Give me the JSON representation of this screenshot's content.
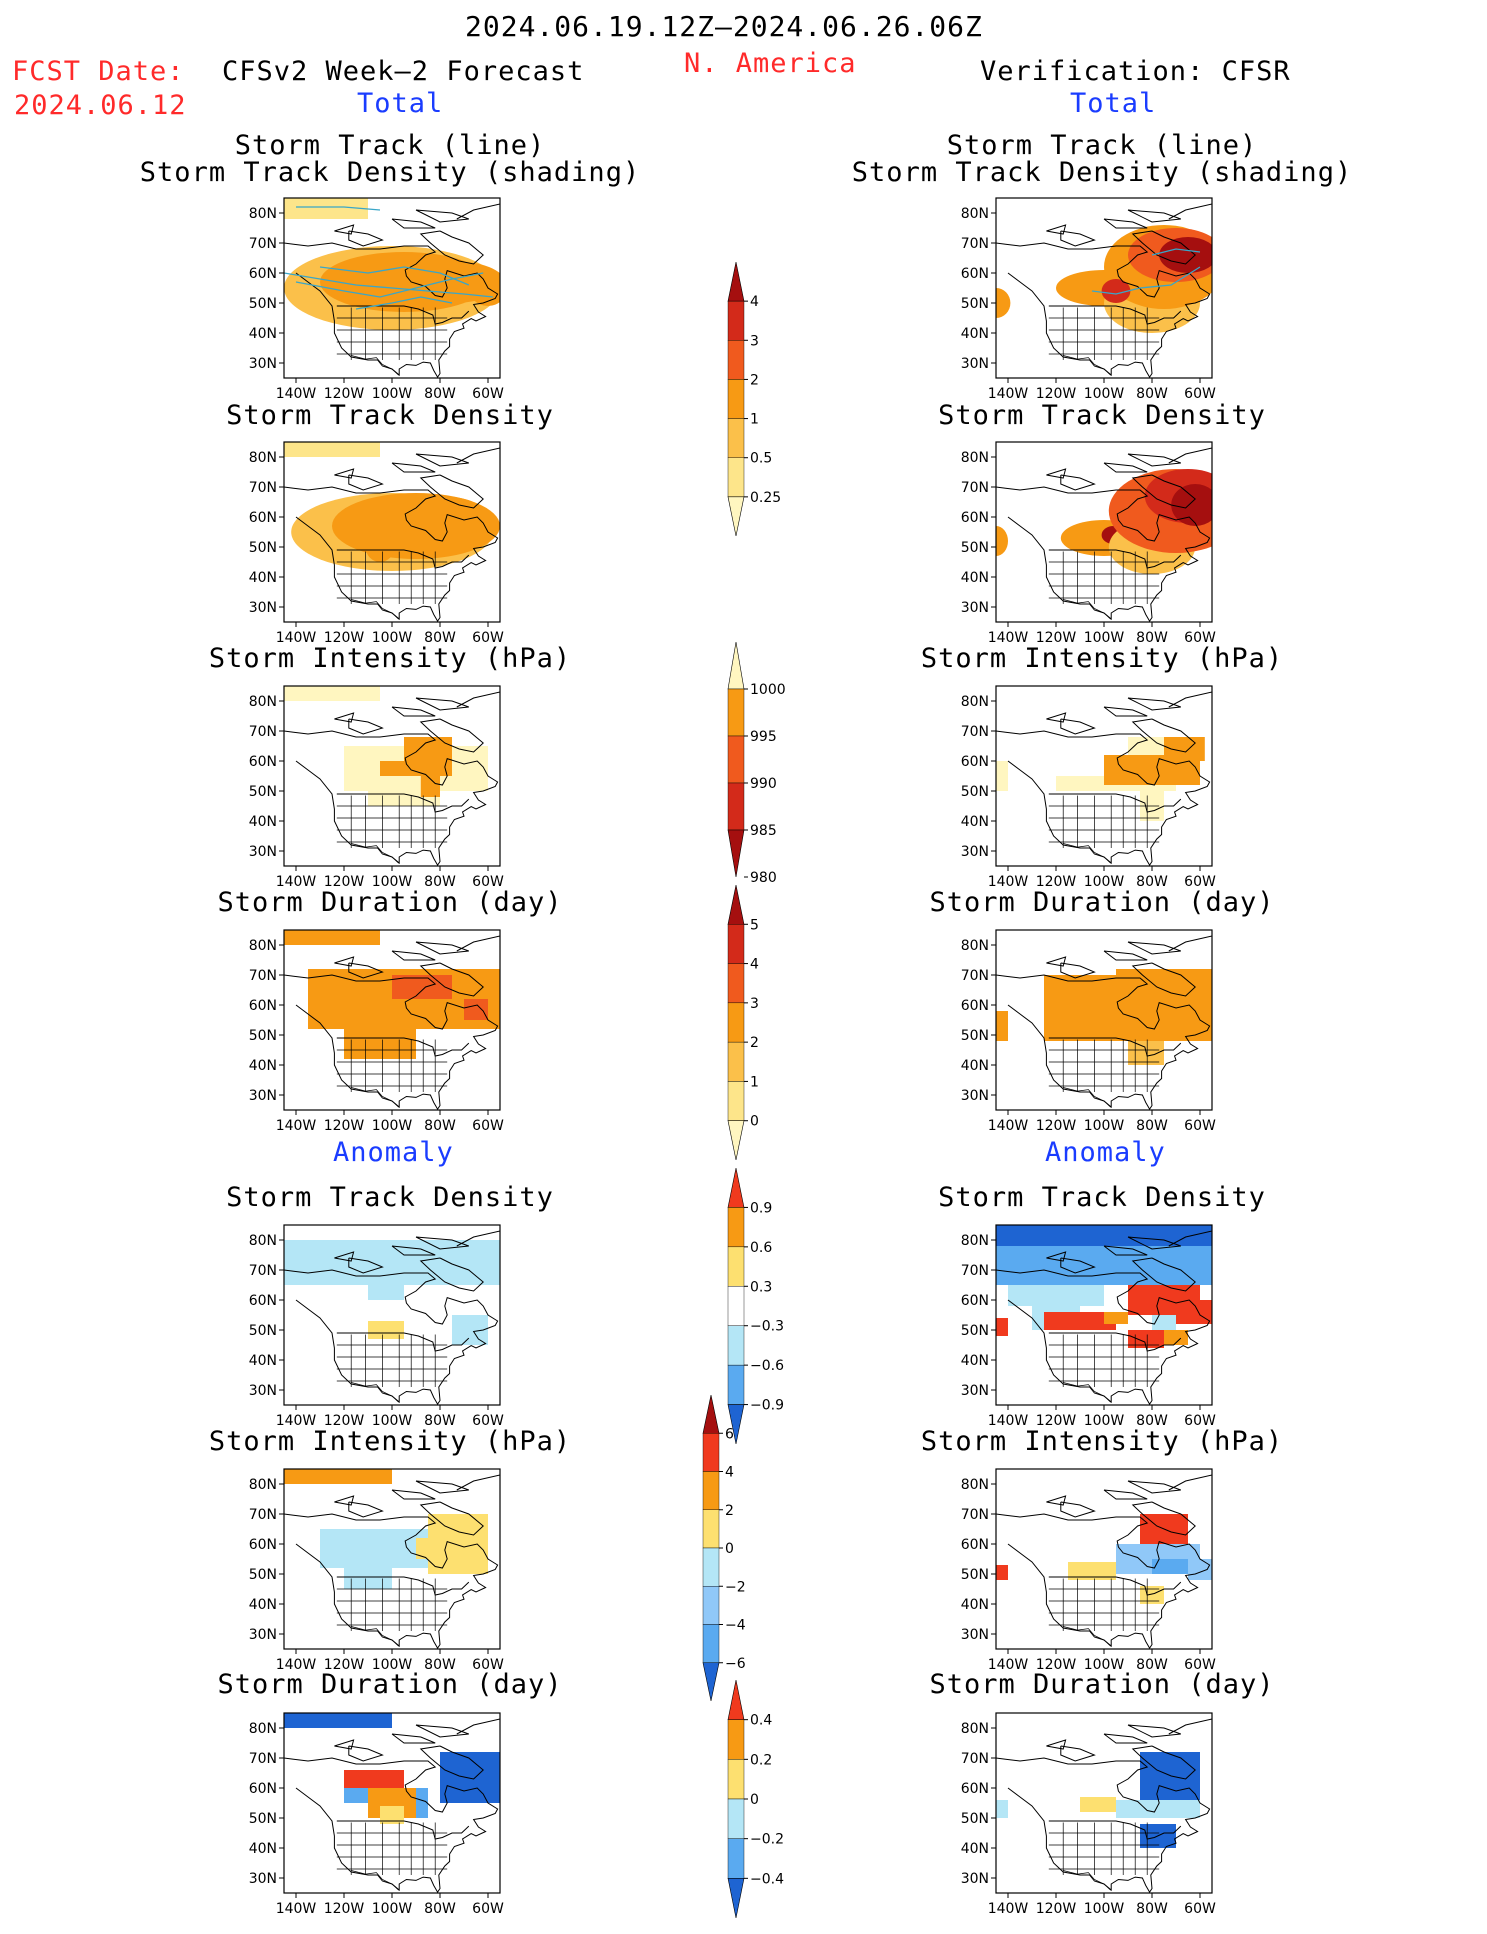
{
  "header": {
    "period": "2024.06.19.12Z–2024.06.26.06Z",
    "fcst_label": "FCST Date:",
    "fcst_date": "2024.06.12",
    "forecast_title": "CFSv2 Week–2 Forecast",
    "region": "N. America",
    "verification_title": "Verification: CFSR"
  },
  "sections": {
    "total": "Total",
    "anomaly": "Anomaly"
  },
  "panel_titles": {
    "track_line": "Storm Track (line)",
    "track_density_shading": "Storm Track Density (shading)",
    "track_density": "Storm Track Density",
    "intensity": "Storm Intensity (hPa)",
    "duration": "Storm Duration (day)"
  },
  "axes": {
    "lon_labels": [
      "140W",
      "120W",
      "100W",
      "80W",
      "60W"
    ],
    "lat_labels": [
      "80N",
      "70N",
      "60N",
      "50N",
      "40N",
      "30N"
    ]
  },
  "colorbars": {
    "total_density": {
      "labels": [
        "4",
        "3",
        "2",
        "1",
        "0.5",
        "0.25"
      ],
      "colors": [
        "#a50f0f",
        "#d32a1a",
        "#f05a1e",
        "#f79a14",
        "#fbc04a",
        "#fde58a",
        "#fff6c0"
      ]
    },
    "total_intensity": {
      "labels": [
        "1000",
        "995",
        "990",
        "985",
        "980"
      ],
      "colors": [
        "#fff6c0",
        "#f79a14",
        "#f05a1e",
        "#d32a1a",
        "#a50f0f"
      ]
    },
    "total_duration": {
      "labels": [
        "5",
        "4",
        "3",
        "2",
        "1",
        "0"
      ],
      "colors": [
        "#a50f0f",
        "#d32a1a",
        "#f05a1e",
        "#f79a14",
        "#fbc04a",
        "#fde58a",
        "#fff6c0"
      ]
    },
    "anom_density": {
      "labels": [
        "0.9",
        "0.6",
        "0.3",
        "−0.3",
        "−0.6",
        "−0.9"
      ],
      "colors": [
        "#f03a1e",
        "#f79a14",
        "#fde070",
        "#ffffff",
        "#b4e6f6",
        "#5aaaf0",
        "#1e64d2"
      ]
    },
    "anom_intensity": {
      "labels": [
        "6",
        "4",
        "2",
        "0",
        "−2",
        "−4",
        "−6"
      ],
      "colors": [
        "#a50f0f",
        "#f03a1e",
        "#f79a14",
        "#fde070",
        "#b4e6f6",
        "#90c8f8",
        "#5aaaf0",
        "#1e64d2"
      ]
    },
    "anom_duration": {
      "labels": [
        "0.4",
        "0.2",
        "0",
        "−0.2",
        "−0.4"
      ],
      "colors": [
        "#f03a1e",
        "#f79a14",
        "#fde070",
        "#b4e6f6",
        "#5aaaf0",
        "#1e64d2"
      ]
    }
  }
}
